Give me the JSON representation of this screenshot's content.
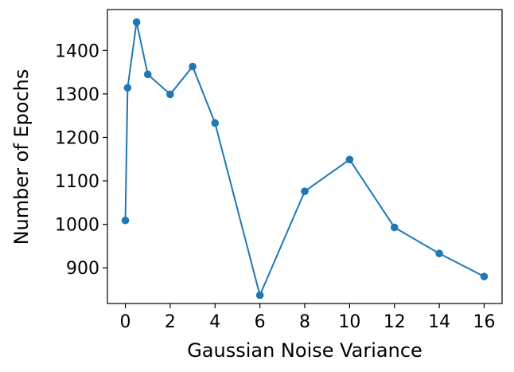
{
  "chart_data": {
    "type": "line",
    "title": "",
    "xlabel": "Gaussian Noise Variance",
    "ylabel": "Number of Epochs",
    "xlim": [
      -0.8,
      16.8
    ],
    "ylim": [
      818,
      1494
    ],
    "xticks": [
      0,
      2,
      4,
      6,
      8,
      10,
      12,
      14,
      16
    ],
    "yticks": [
      900,
      1000,
      1100,
      1200,
      1300,
      1400
    ],
    "grid": false,
    "legend": "none",
    "series": [
      {
        "color": "#1f77b4",
        "marker": "circle",
        "x": [
          0,
          0.1,
          0.5,
          1,
          2,
          3,
          4,
          6,
          8,
          10,
          12,
          14,
          16
        ],
        "y": [
          1009,
          1314,
          1465,
          1345,
          1299,
          1363,
          1233,
          837,
          1076,
          1149,
          993,
          933,
          880
        ]
      }
    ]
  }
}
